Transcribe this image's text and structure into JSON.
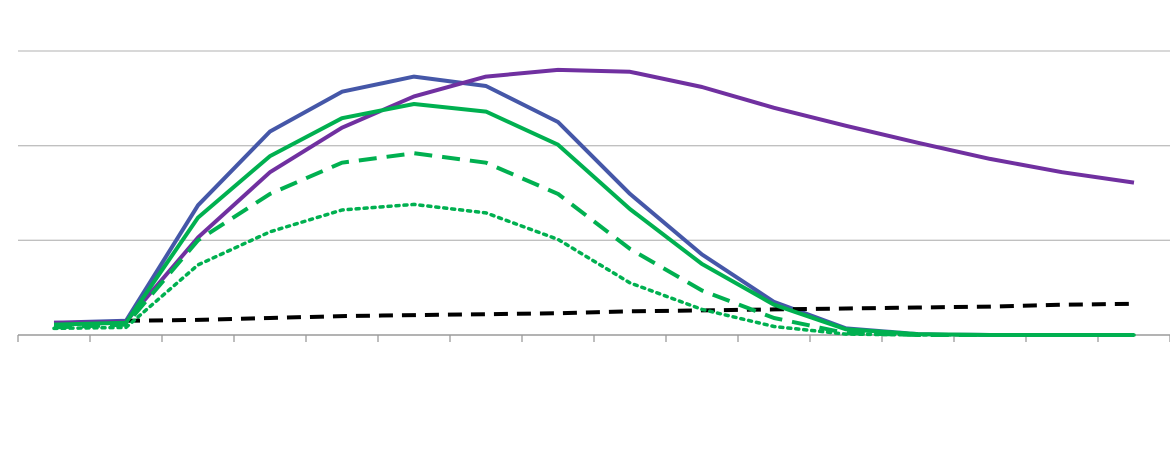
{
  "chart_data": {
    "type": "line",
    "title": "",
    "xlabel": "",
    "ylabel": "",
    "x": [
      1,
      2,
      3,
      4,
      5,
      6,
      7,
      8,
      9,
      10,
      11,
      12,
      13,
      14,
      15,
      16
    ],
    "ylim": [
      0,
      3
    ],
    "grid": true,
    "yticks": [
      0,
      1,
      2,
      3
    ],
    "legend": "none",
    "series": [
      {
        "name": "blue",
        "color": "#4557a8",
        "style": "solid",
        "values": [
          0.13,
          0.15,
          1.37,
          2.15,
          2.57,
          2.73,
          2.63,
          2.25,
          1.49,
          0.85,
          0.35,
          0.07,
          0.01,
          0,
          0,
          0
        ]
      },
      {
        "name": "purple",
        "color": "#7030a0",
        "style": "solid",
        "values": [
          0.13,
          0.14,
          1.03,
          1.72,
          2.19,
          2.52,
          2.73,
          2.8,
          2.78,
          2.62,
          2.4,
          2.21,
          2.03,
          1.86,
          1.72,
          1.61
        ]
      },
      {
        "name": "black-dashed",
        "color": "#000000",
        "style": "dashed",
        "values": [
          null,
          0.15,
          0.16,
          0.18,
          0.2,
          0.21,
          0.22,
          0.23,
          0.25,
          0.26,
          0.27,
          0.28,
          0.29,
          0.3,
          0.32,
          0.33
        ]
      },
      {
        "name": "green-dotted",
        "color": "#00b050",
        "style": "dotted",
        "values": [
          0.07,
          0.08,
          0.74,
          1.09,
          1.32,
          1.38,
          1.29,
          1.01,
          0.55,
          0.27,
          0.09,
          0.01,
          0,
          0,
          0,
          0
        ]
      },
      {
        "name": "green-dashed",
        "color": "#00b050",
        "style": "dashed",
        "values": [
          0.08,
          0.11,
          1.0,
          1.49,
          1.82,
          1.92,
          1.82,
          1.49,
          0.91,
          0.47,
          0.18,
          0.02,
          0,
          0,
          0,
          0
        ]
      },
      {
        "name": "green-solid",
        "color": "#00b050",
        "style": "solid",
        "values": [
          0.11,
          0.13,
          1.24,
          1.89,
          2.29,
          2.44,
          2.36,
          2.01,
          1.33,
          0.75,
          0.32,
          0.06,
          0.01,
          0,
          0,
          0
        ]
      }
    ]
  }
}
